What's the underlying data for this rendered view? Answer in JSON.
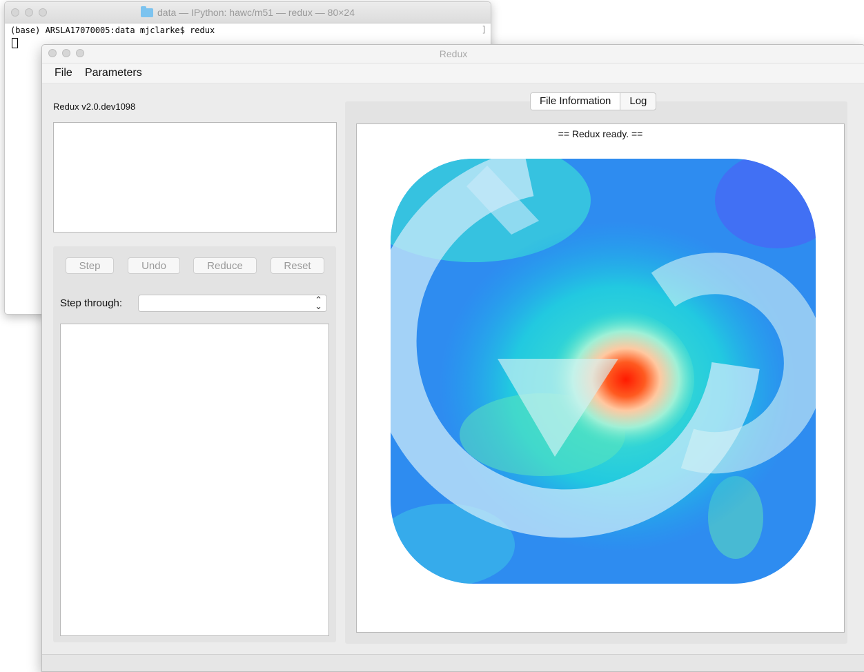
{
  "terminal": {
    "title": "data — IPython: hawc/m51 — redux — 80×24",
    "line": "(base) ARSLA17070005:data mjclarke$ redux"
  },
  "redux": {
    "title": "Redux",
    "menu": [
      "File",
      "Parameters"
    ],
    "version": "Redux v2.0.dev1098",
    "buttons": {
      "step": "Step",
      "undo": "Undo",
      "reduce": "Reduce",
      "reset": "Reset"
    },
    "step_through_label": "Step through:",
    "step_through_value": "",
    "tabs": {
      "file_info": "File Information",
      "log": "Log"
    },
    "status_message": "==  Redux ready.  =="
  },
  "icons": [
    "folder-icon",
    "redux-logo",
    "select-arrows-icon"
  ],
  "colors": {
    "logo_blue": "#2f8ef0",
    "logo_cyan": "#44e0d0",
    "logo_red": "#ff1a00",
    "arrow_overlay": "#bfe4f7"
  }
}
